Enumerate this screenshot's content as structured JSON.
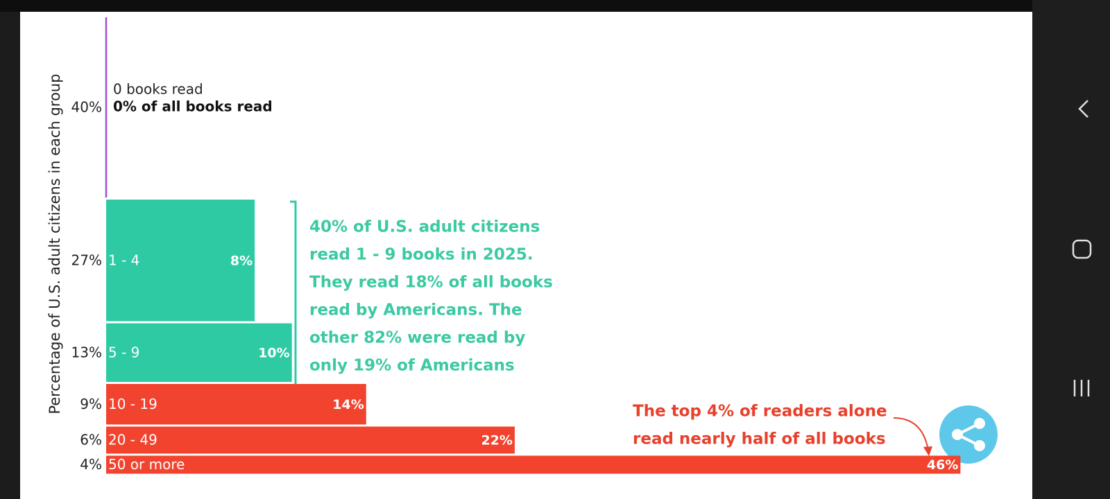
{
  "chart_data": {
    "type": "variable-bar",
    "y_axis_label": "Percentage of U.S. adult citizens in each group",
    "categories": [
      "0 books read",
      "1 - 4",
      "5 - 9",
      "10 - 19",
      "20 - 49",
      "50 or more"
    ],
    "colors": [
      "#a24bd6",
      "#2ecaa4",
      "#2ecaa4",
      "#f2432e",
      "#f2432e",
      "#f2432e"
    ],
    "series": [
      {
        "values": [
          40,
          27,
          13,
          9,
          6,
          4
        ],
        "value_labels": [
          "40%",
          "27%",
          "13%",
          "9%",
          "6%",
          "4%"
        ]
      },
      {
        "values": [
          0,
          8,
          10,
          14,
          22,
          46
        ],
        "value_labels": [
          "0% of all books read",
          "8%",
          "10%",
          "14%",
          "22%",
          "46%"
        ]
      }
    ],
    "annotations": [
      {
        "color": "#3cc9a3",
        "lines": [
          "40% of U.S. adult citizens",
          "read 1 - 9 books in 2025.",
          "They read 18% of all books",
          "read by Americans. The",
          "other 82% were read by",
          "only 19% of Americans"
        ]
      },
      {
        "color": "#e8402b",
        "lines": [
          "The top 4% of readers alone",
          "read nearly half of all books"
        ]
      }
    ]
  }
}
